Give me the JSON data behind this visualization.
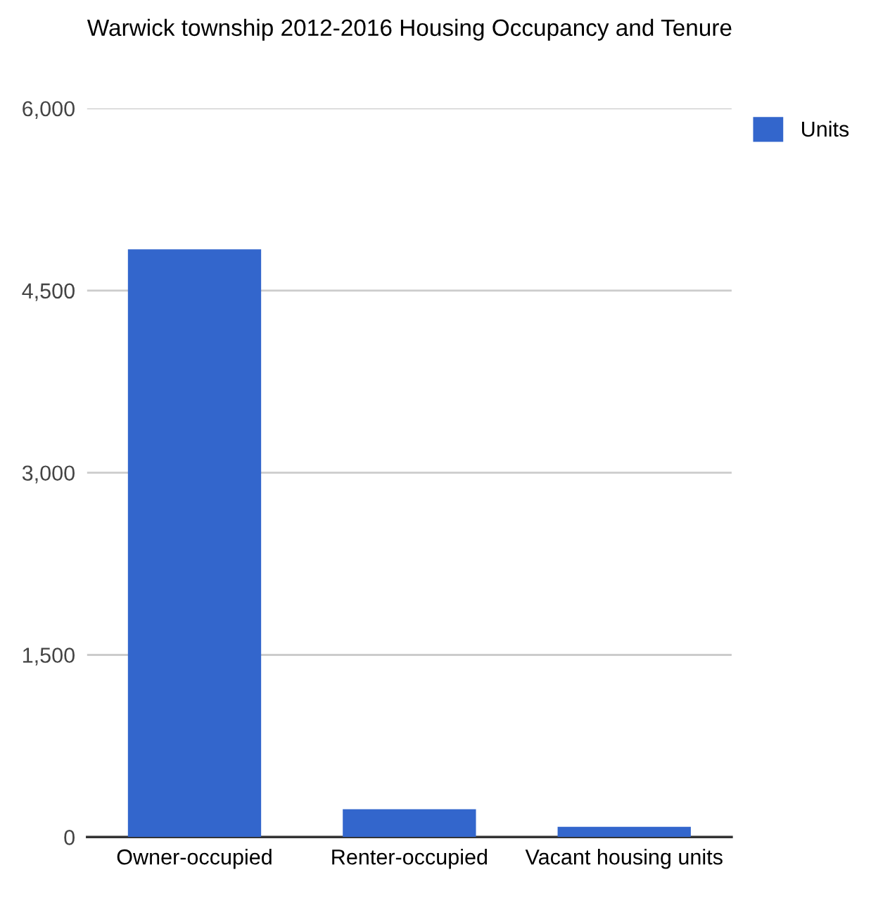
{
  "chart_data": {
    "type": "bar",
    "title": "Warwick township 2012-2016 Housing Occupancy and Tenure",
    "categories": [
      "Owner-occupied",
      "Renter-occupied",
      "Vacant housing units"
    ],
    "series": [
      {
        "name": "Units",
        "color": "#3366cc",
        "values": [
          4840,
          230,
          85
        ]
      }
    ],
    "ylim": [
      0,
      6000
    ],
    "yticks": [
      {
        "value": 0,
        "label": "0"
      },
      {
        "value": 1500,
        "label": "1,500"
      },
      {
        "value": 3000,
        "label": "3,000"
      },
      {
        "value": 4500,
        "label": "4,500"
      },
      {
        "value": 6000,
        "label": "6,000"
      }
    ],
    "grid": "y",
    "legend": "top right"
  }
}
